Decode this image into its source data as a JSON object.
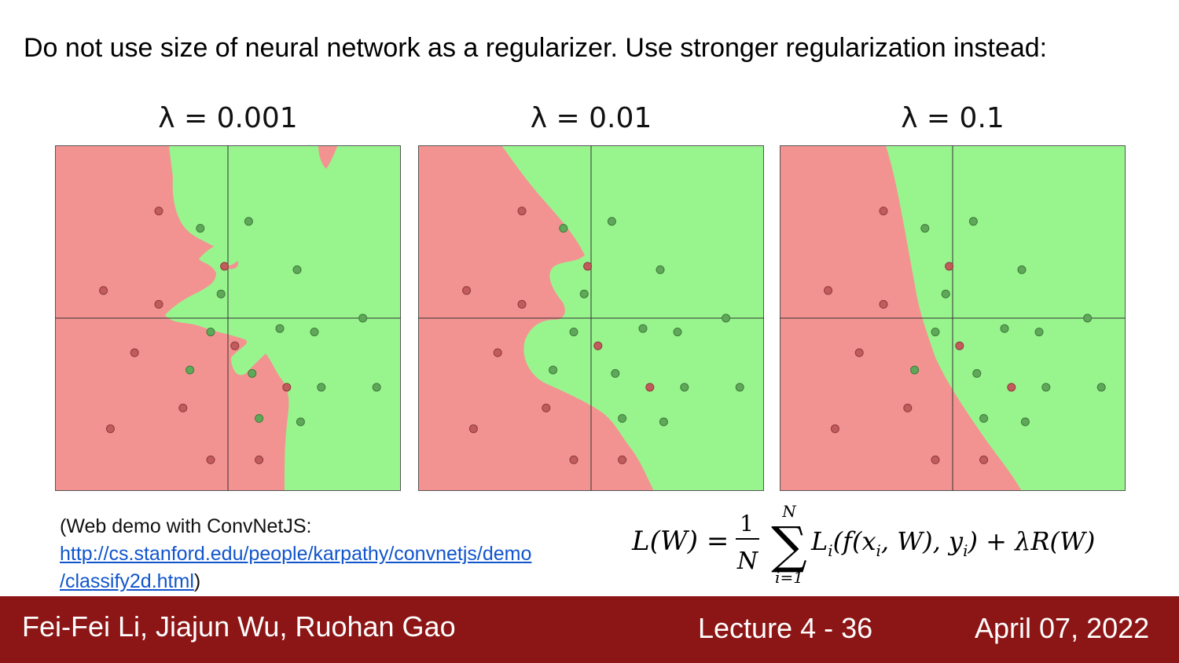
{
  "slide": {
    "title": "Do not use size of neural network as a regularizer. Use stronger regularization instead:"
  },
  "colors": {
    "red_region": "#f39391",
    "green_region": "#98f58e",
    "red_point": "#c25b5b",
    "green_point": "#5fa85a",
    "axis": "#333333",
    "footer_bg": "#8c1515",
    "link": "#1155cc"
  },
  "panels": [
    {
      "label": "λ = 0.001"
    },
    {
      "label": "λ = 0.01"
    },
    {
      "label": "λ = 0.1"
    }
  ],
  "caption": {
    "line1": "(Web demo with ConvNetJS:",
    "link_part1": "http://cs.stanford.edu/people/karpathy/convnetjs/demo",
    "link_part2": "/classify2d.html",
    "close": ")"
  },
  "formula": {
    "lhs": "L(W) =",
    "frac_num": "1",
    "frac_den": "N",
    "sum_top": "N",
    "sum_bottom": "i=1",
    "body": "L",
    "body_sub": "i",
    "body_rest": "(f(x",
    "x_sub": "i",
    "mid": ", W), y",
    "y_sub": "i",
    "tail": ") + λR(W)"
  },
  "footer": {
    "authors": "Fei-Fei Li, Jiajun Wu, Ruohan Gao",
    "lecture": "Lecture 4 - 36",
    "date": "April 07, 2022"
  },
  "points": [
    {
      "x": -2.0,
      "y": 3.1,
      "cls": "red"
    },
    {
      "x": -0.8,
      "y": 2.6,
      "cls": "green"
    },
    {
      "x": 0.6,
      "y": 2.8,
      "cls": "green"
    },
    {
      "x": -0.1,
      "y": 1.5,
      "cls": "red"
    },
    {
      "x": 2.0,
      "y": 1.4,
      "cls": "green"
    },
    {
      "x": -3.6,
      "y": 0.8,
      "cls": "red"
    },
    {
      "x": -2.0,
      "y": 0.4,
      "cls": "red"
    },
    {
      "x": -0.2,
      "y": 0.7,
      "cls": "green"
    },
    {
      "x": 3.9,
      "y": 0.0,
      "cls": "green"
    },
    {
      "x": -0.5,
      "y": -0.4,
      "cls": "green"
    },
    {
      "x": 1.5,
      "y": -0.3,
      "cls": "green"
    },
    {
      "x": 2.5,
      "y": -0.4,
      "cls": "green"
    },
    {
      "x": 0.2,
      "y": -0.8,
      "cls": "red"
    },
    {
      "x": -2.7,
      "y": -1.0,
      "cls": "red"
    },
    {
      "x": -1.1,
      "y": -1.5,
      "cls": "green"
    },
    {
      "x": 0.7,
      "y": -1.6,
      "cls": "green"
    },
    {
      "x": 1.7,
      "y": -2.0,
      "cls": "red"
    },
    {
      "x": 2.7,
      "y": -2.0,
      "cls": "green"
    },
    {
      "x": 4.3,
      "y": -2.0,
      "cls": "green"
    },
    {
      "x": -1.3,
      "y": -2.6,
      "cls": "red"
    },
    {
      "x": 0.9,
      "y": -2.9,
      "cls": "green"
    },
    {
      "x": 2.1,
      "y": -3.0,
      "cls": "green"
    },
    {
      "x": -3.4,
      "y": -3.2,
      "cls": "red"
    },
    {
      "x": -0.5,
      "y": -4.1,
      "cls": "red"
    },
    {
      "x": 0.9,
      "y": -4.1,
      "cls": "red"
    }
  ]
}
